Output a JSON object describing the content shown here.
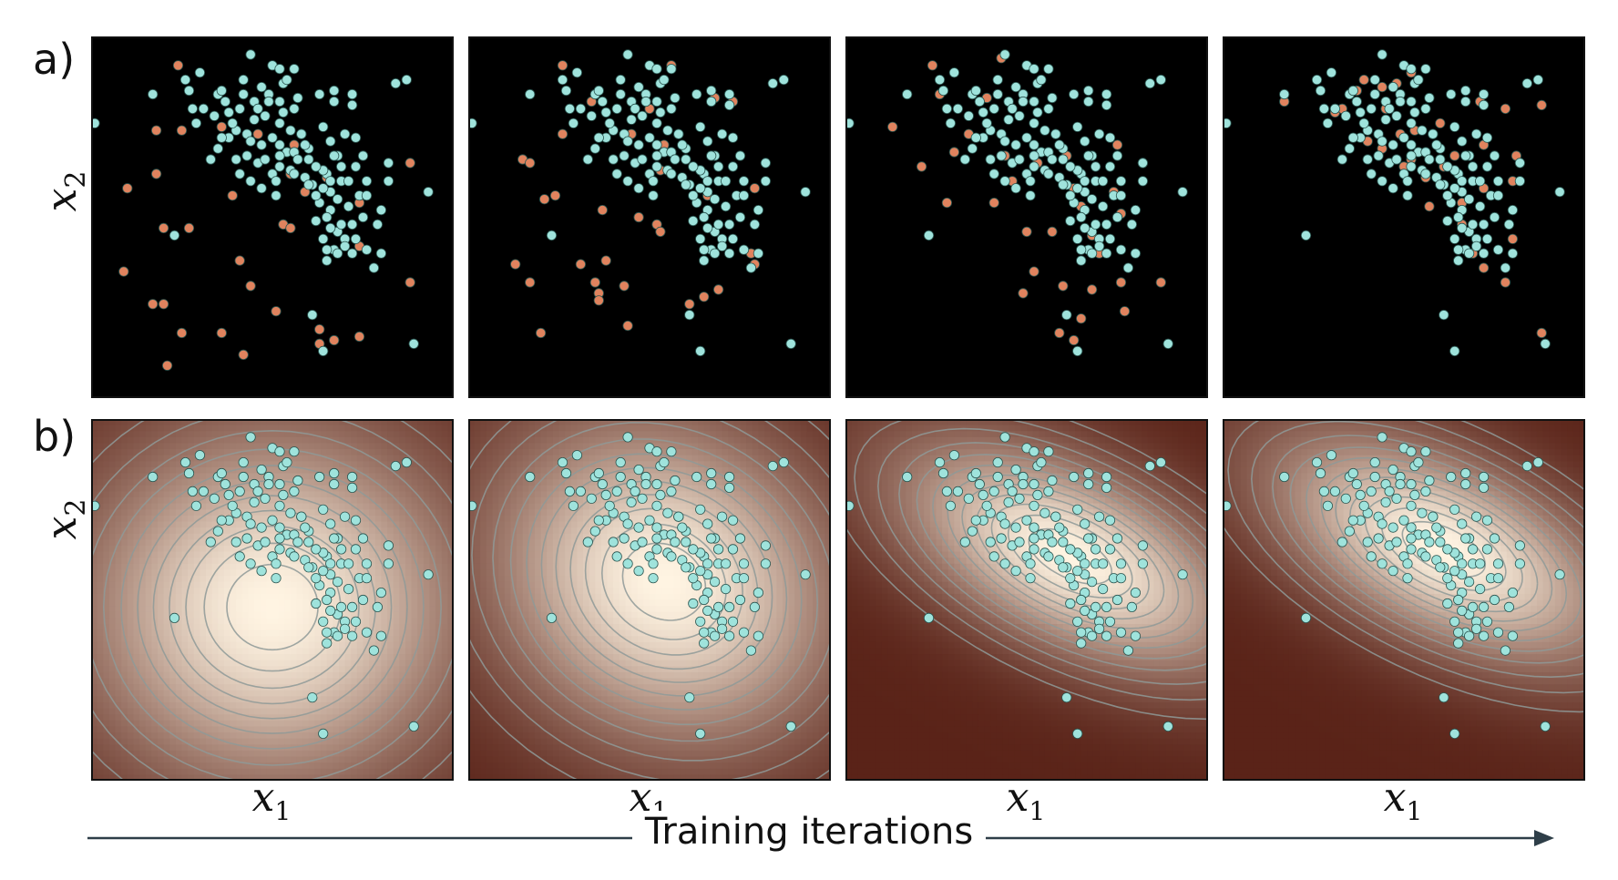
{
  "rows": [
    {
      "label": "a)",
      "name": "samples"
    },
    {
      "label": "b)",
      "name": "density"
    }
  ],
  "axes": {
    "x_var": "x",
    "x_sub": "1",
    "y_var": "x",
    "y_sub": "2"
  },
  "timeline": {
    "label": "Training iterations"
  },
  "colors": {
    "real_points": "#9fe3dc",
    "generated_points": "#e0835e",
    "scatter_background": "#000000",
    "density_low": "#5a2318",
    "density_high": "#fff4e2",
    "contour": "#8f9a98"
  },
  "chart_data": {
    "type": "scatter",
    "panels_per_row": 4,
    "real_points": [
      [
        0.44,
        0.05
      ],
      [
        0.5,
        0.08
      ],
      [
        0.52,
        0.09
      ],
      [
        0.56,
        0.09
      ],
      [
        0.3,
        0.1
      ],
      [
        0.42,
        0.12
      ],
      [
        0.53,
        0.13
      ],
      [
        0.72,
        0.16
      ],
      [
        0.67,
        0.15
      ],
      [
        0.84,
        0.13
      ],
      [
        0.27,
        0.15
      ],
      [
        0.35,
        0.16
      ],
      [
        0.37,
        0.18
      ],
      [
        0.45,
        0.18
      ],
      [
        0.46,
        0.2
      ],
      [
        0.57,
        0.17
      ],
      [
        0.56,
        0.2
      ],
      [
        0.67,
        0.18
      ],
      [
        0.72,
        0.19
      ],
      [
        0.48,
        0.22
      ],
      [
        0.52,
        0.24
      ],
      [
        0.28,
        0.2
      ],
      [
        0.31,
        0.2
      ],
      [
        0.01,
        0.24
      ],
      [
        0.4,
        0.26
      ],
      [
        0.43,
        0.27
      ],
      [
        0.38,
        0.28
      ],
      [
        0.5,
        0.28
      ],
      [
        0.52,
        0.3
      ],
      [
        0.54,
        0.32
      ],
      [
        0.58,
        0.27
      ],
      [
        0.47,
        0.3
      ],
      [
        0.43,
        0.33
      ],
      [
        0.46,
        0.35
      ],
      [
        0.4,
        0.34
      ],
      [
        0.6,
        0.34
      ],
      [
        0.66,
        0.29
      ],
      [
        0.68,
        0.33
      ],
      [
        0.65,
        0.38
      ],
      [
        0.69,
        0.4
      ],
      [
        0.64,
        0.37
      ],
      [
        0.52,
        0.36
      ],
      [
        0.55,
        0.37
      ],
      [
        0.5,
        0.38
      ],
      [
        0.51,
        0.4
      ],
      [
        0.59,
        0.39
      ],
      [
        0.61,
        0.41
      ],
      [
        0.75,
        0.33
      ],
      [
        0.73,
        0.36
      ],
      [
        0.74,
        0.44
      ],
      [
        0.76,
        0.44
      ],
      [
        0.71,
        0.47
      ],
      [
        0.33,
        0.34
      ],
      [
        0.63,
        0.46
      ],
      [
        0.66,
        0.48
      ],
      [
        0.72,
        0.52
      ],
      [
        0.75,
        0.5
      ],
      [
        0.68,
        0.54
      ],
      [
        0.65,
        0.5
      ],
      [
        0.62,
        0.51
      ],
      [
        0.93,
        0.43
      ],
      [
        0.67,
        0.59
      ],
      [
        0.64,
        0.56
      ],
      [
        0.68,
        0.6
      ],
      [
        0.72,
        0.6
      ],
      [
        0.76,
        0.59
      ],
      [
        0.78,
        0.64
      ],
      [
        0.23,
        0.55
      ],
      [
        0.65,
        0.59
      ],
      [
        0.44,
        0.4
      ],
      [
        0.47,
        0.42
      ],
      [
        0.41,
        0.38
      ],
      [
        0.36,
        0.28
      ],
      [
        0.62,
        0.44
      ],
      [
        0.49,
        0.16
      ],
      [
        0.26,
        0.12
      ],
      [
        0.63,
        0.16
      ],
      [
        0.35,
        0.31
      ],
      [
        0.82,
        0.35
      ],
      [
        0.82,
        0.4
      ],
      [
        0.66,
        0.43
      ],
      [
        0.41,
        0.2
      ],
      [
        0.52,
        0.18
      ],
      [
        0.45,
        0.23
      ],
      [
        0.34,
        0.22
      ],
      [
        0.55,
        0.26
      ],
      [
        0.64,
        0.25
      ],
      [
        0.6,
        0.31
      ],
      [
        0.71,
        0.4
      ],
      [
        0.7,
        0.56
      ],
      [
        0.65,
        0.62
      ],
      [
        0.6,
        0.41
      ],
      [
        0.51,
        0.44
      ],
      [
        0.47,
        0.14
      ],
      [
        0.54,
        0.12
      ],
      [
        0.38,
        0.21
      ],
      [
        0.29,
        0.24
      ],
      [
        0.59,
        0.3
      ],
      [
        0.7,
        0.27
      ],
      [
        0.73,
        0.28
      ],
      [
        0.62,
        0.36
      ],
      [
        0.66,
        0.4
      ],
      [
        0.64,
        0.42
      ],
      [
        0.68,
        0.45
      ],
      [
        0.56,
        0.38
      ],
      [
        0.48,
        0.34
      ],
      [
        0.52,
        0.33
      ],
      [
        0.69,
        0.52
      ],
      [
        0.66,
        0.53
      ],
      [
        0.7,
        0.58
      ],
      [
        0.73,
        0.56
      ],
      [
        0.8,
        0.6
      ],
      [
        0.87,
        0.12
      ],
      [
        0.17,
        0.16
      ],
      [
        0.89,
        0.85
      ],
      [
        0.64,
        0.87
      ],
      [
        0.61,
        0.77
      ],
      [
        0.76,
        0.4
      ],
      [
        0.8,
        0.48
      ],
      [
        0.79,
        0.52
      ],
      [
        0.69,
        0.36
      ],
      [
        0.67,
        0.33
      ],
      [
        0.58,
        0.27
      ],
      [
        0.53,
        0.21
      ],
      [
        0.49,
        0.18
      ],
      [
        0.42,
        0.16
      ],
      [
        0.36,
        0.15
      ],
      [
        0.39,
        0.24
      ],
      [
        0.44,
        0.29
      ],
      [
        0.56,
        0.32
      ],
      [
        0.57,
        0.34
      ]
    ],
    "generated_points": [
      [
        [
          0.24,
          0.08
        ],
        [
          0.18,
          0.26
        ],
        [
          0.36,
          0.25
        ],
        [
          0.46,
          0.27
        ],
        [
          0.56,
          0.3
        ],
        [
          0.55,
          0.38
        ],
        [
          0.39,
          0.44
        ],
        [
          0.59,
          0.43
        ],
        [
          0.65,
          0.39
        ],
        [
          0.74,
          0.46
        ],
        [
          0.88,
          0.35
        ],
        [
          0.1,
          0.42
        ],
        [
          0.18,
          0.38
        ],
        [
          0.53,
          0.52
        ],
        [
          0.55,
          0.53
        ],
        [
          0.2,
          0.53
        ],
        [
          0.27,
          0.53
        ],
        [
          0.74,
          0.58
        ],
        [
          0.41,
          0.62
        ],
        [
          0.09,
          0.65
        ],
        [
          0.44,
          0.69
        ],
        [
          0.88,
          0.68
        ],
        [
          0.17,
          0.74
        ],
        [
          0.2,
          0.74
        ],
        [
          0.51,
          0.76
        ],
        [
          0.25,
          0.82
        ],
        [
          0.36,
          0.82
        ],
        [
          0.63,
          0.81
        ],
        [
          0.67,
          0.84
        ],
        [
          0.74,
          0.83
        ],
        [
          0.63,
          0.85
        ],
        [
          0.42,
          0.88
        ],
        [
          0.21,
          0.91
        ],
        [
          0.25,
          0.26
        ]
      ],
      [
        [
          0.26,
          0.08
        ],
        [
          0.34,
          0.18
        ],
        [
          0.5,
          0.2
        ],
        [
          0.73,
          0.18
        ],
        [
          0.68,
          0.17
        ],
        [
          0.26,
          0.27
        ],
        [
          0.45,
          0.27
        ],
        [
          0.54,
          0.3
        ],
        [
          0.15,
          0.34
        ],
        [
          0.17,
          0.35
        ],
        [
          0.21,
          0.45
        ],
        [
          0.24,
          0.44
        ],
        [
          0.53,
          0.37
        ],
        [
          0.66,
          0.44
        ],
        [
          0.79,
          0.42
        ],
        [
          0.37,
          0.48
        ],
        [
          0.52,
          0.52
        ],
        [
          0.53,
          0.54
        ],
        [
          0.78,
          0.6
        ],
        [
          0.38,
          0.62
        ],
        [
          0.13,
          0.63
        ],
        [
          0.31,
          0.63
        ],
        [
          0.79,
          0.63
        ],
        [
          0.35,
          0.68
        ],
        [
          0.43,
          0.69
        ],
        [
          0.65,
          0.72
        ],
        [
          0.69,
          0.7
        ],
        [
          0.36,
          0.71
        ],
        [
          0.36,
          0.73
        ],
        [
          0.61,
          0.74
        ],
        [
          0.44,
          0.8
        ],
        [
          0.2,
          0.82
        ],
        [
          0.17,
          0.68
        ],
        [
          0.56,
          0.08
        ],
        [
          0.47,
          0.5
        ]
      ],
      [
        [
          0.24,
          0.08
        ],
        [
          0.43,
          0.06
        ],
        [
          0.26,
          0.16
        ],
        [
          0.39,
          0.17
        ],
        [
          0.52,
          0.18
        ],
        [
          0.13,
          0.25
        ],
        [
          0.34,
          0.27
        ],
        [
          0.61,
          0.33
        ],
        [
          0.3,
          0.32
        ],
        [
          0.44,
          0.33
        ],
        [
          0.53,
          0.35
        ],
        [
          0.75,
          0.3
        ],
        [
          0.82,
          0.35
        ],
        [
          0.21,
          0.36
        ],
        [
          0.46,
          0.4
        ],
        [
          0.63,
          0.42
        ],
        [
          0.74,
          0.43
        ],
        [
          0.28,
          0.46
        ],
        [
          0.41,
          0.46
        ],
        [
          0.65,
          0.47
        ],
        [
          0.76,
          0.49
        ],
        [
          0.5,
          0.54
        ],
        [
          0.57,
          0.54
        ],
        [
          0.68,
          0.55
        ],
        [
          0.7,
          0.6
        ],
        [
          0.76,
          0.68
        ],
        [
          0.6,
          0.69
        ],
        [
          0.68,
          0.7
        ],
        [
          0.87,
          0.68
        ],
        [
          0.52,
          0.65
        ],
        [
          0.49,
          0.71
        ],
        [
          0.65,
          0.78
        ],
        [
          0.77,
          0.76
        ],
        [
          0.59,
          0.82
        ],
        [
          0.63,
          0.84
        ]
      ],
      [
        [
          0.31,
          0.21
        ],
        [
          0.33,
          0.2
        ],
        [
          0.17,
          0.18
        ],
        [
          0.37,
          0.15
        ],
        [
          0.39,
          0.12
        ],
        [
          0.44,
          0.14
        ],
        [
          0.48,
          0.13
        ],
        [
          0.52,
          0.1
        ],
        [
          0.45,
          0.2
        ],
        [
          0.49,
          0.27
        ],
        [
          0.53,
          0.26
        ],
        [
          0.6,
          0.24
        ],
        [
          0.71,
          0.18
        ],
        [
          0.78,
          0.2
        ],
        [
          0.88,
          0.19
        ],
        [
          0.4,
          0.29
        ],
        [
          0.44,
          0.31
        ],
        [
          0.5,
          0.36
        ],
        [
          0.52,
          0.34
        ],
        [
          0.56,
          0.39
        ],
        [
          0.61,
          0.36
        ],
        [
          0.64,
          0.33
        ],
        [
          0.72,
          0.3
        ],
        [
          0.81,
          0.33
        ],
        [
          0.8,
          0.4
        ],
        [
          0.72,
          0.42
        ],
        [
          0.66,
          0.46
        ],
        [
          0.57,
          0.47
        ],
        [
          0.66,
          0.52
        ],
        [
          0.7,
          0.56
        ],
        [
          0.8,
          0.56
        ],
        [
          0.69,
          0.6
        ],
        [
          0.72,
          0.64
        ],
        [
          0.78,
          0.68
        ],
        [
          0.88,
          0.82
        ]
      ]
    ],
    "density_centers": [
      {
        "cx": 0.5,
        "cy": 0.52,
        "sx": 0.33,
        "sy": 0.31,
        "rho": 0.0
      },
      {
        "cx": 0.54,
        "cy": 0.45,
        "sx": 0.3,
        "sy": 0.28,
        "rho": 0.15
      },
      {
        "cx": 0.62,
        "cy": 0.38,
        "sx": 0.3,
        "sy": 0.2,
        "rho": 0.55
      },
      {
        "cx": 0.61,
        "cy": 0.36,
        "sx": 0.3,
        "sy": 0.2,
        "rho": 0.55
      }
    ]
  }
}
